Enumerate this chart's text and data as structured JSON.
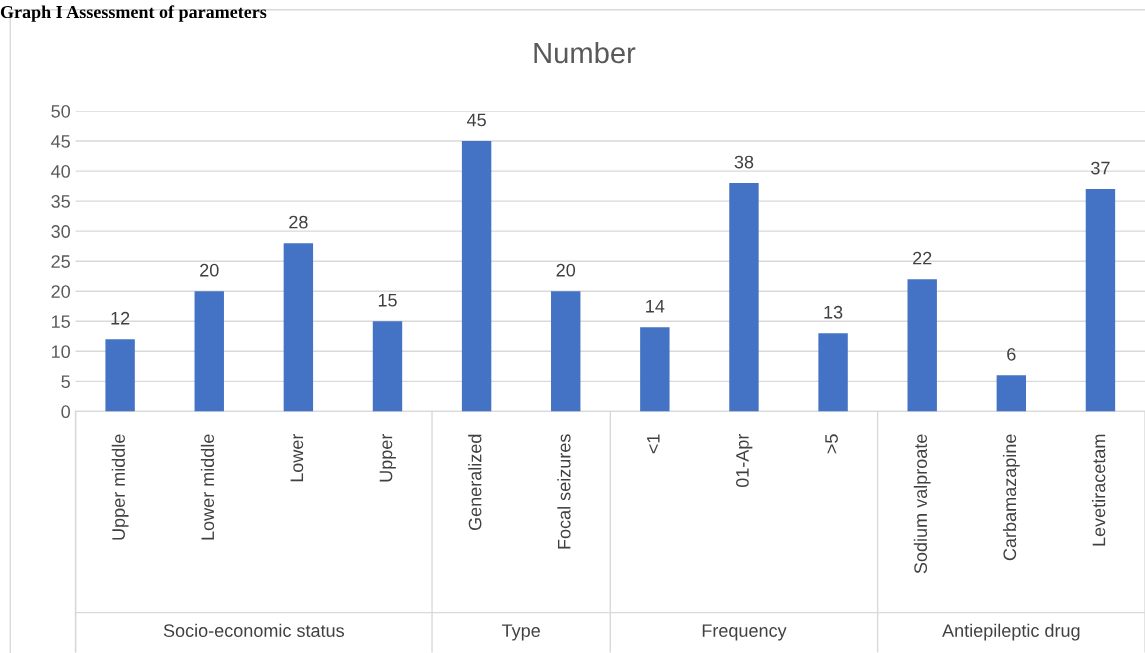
{
  "chart_data": {
    "type": "bar",
    "title": "Number",
    "categories": [
      "Upper middle",
      "Lower middle",
      "Lower",
      "Upper",
      "Generalized",
      "Focal seizures",
      "<1",
      "01-Apr",
      ">5",
      "Sodium valproate",
      "Carbamazapine",
      "Levetiracetam"
    ],
    "values": [
      12,
      20,
      28,
      15,
      45,
      20,
      14,
      38,
      13,
      22,
      6,
      37
    ],
    "color": "#4472c4",
    "ylim": [
      0,
      50
    ],
    "yticks": [
      0,
      5,
      10,
      15,
      20,
      25,
      30,
      35,
      40,
      45,
      50
    ],
    "grid": "y",
    "data_labels": true,
    "legend": false,
    "annotations": [
      "Socio-economic status",
      "Type",
      "Frequency",
      "Antiepileptic drug",
      "Graph I Assessment of parameters"
    ]
  }
}
